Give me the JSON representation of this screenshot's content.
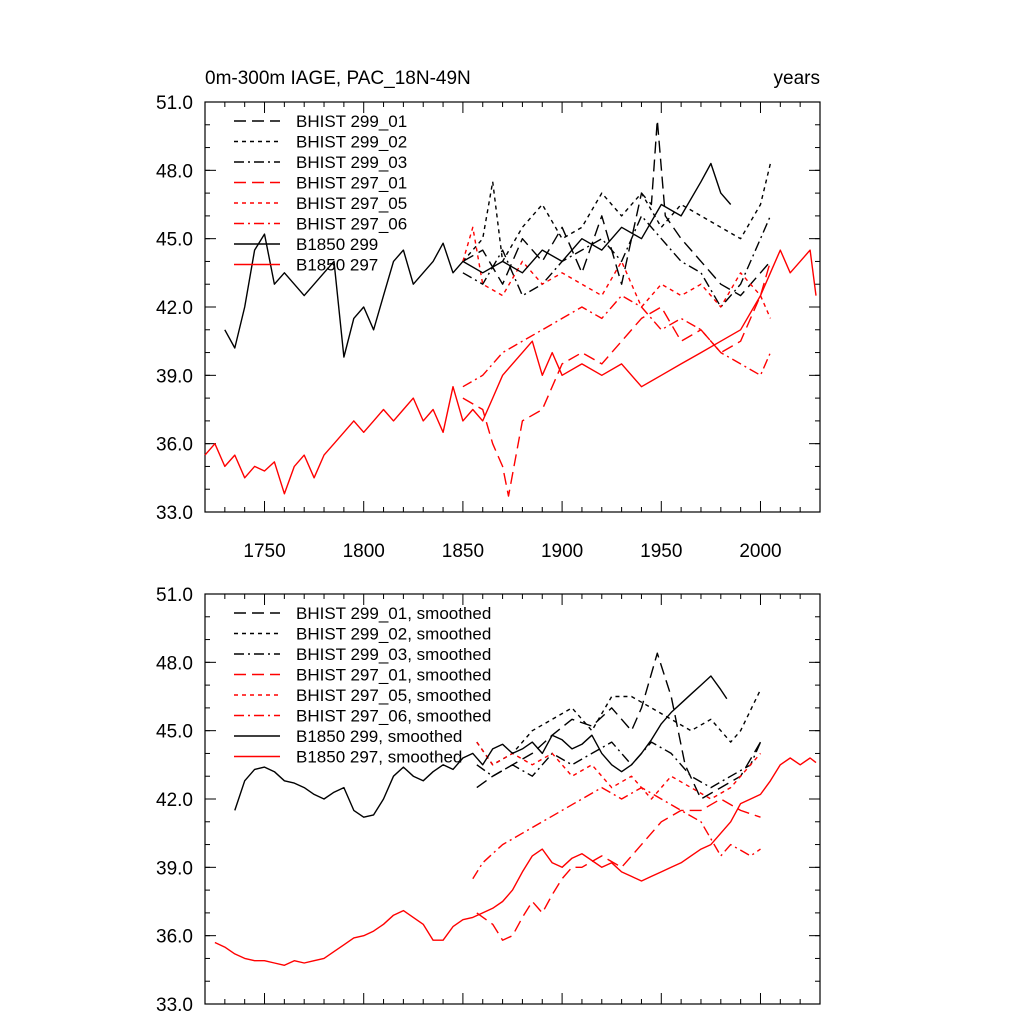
{
  "chart_data": [
    {
      "type": "line",
      "title": "0m-300m IAGE, PAC_18N-49N",
      "title_right": "years",
      "xlim": [
        1720,
        2030
      ],
      "ylim": [
        33,
        51
      ],
      "xticks": [
        1750,
        1800,
        1850,
        1900,
        1950,
        2000
      ],
      "yticks": [
        33.0,
        36.0,
        39.0,
        42.0,
        45.0,
        48.0,
        51.0
      ],
      "ytick_labels": [
        "33.0",
        "36.0",
        "39.0",
        "42.0",
        "45.0",
        "48.0",
        "51.0"
      ],
      "legend": [
        "BHIST 299_01",
        "BHIST 299_02",
        "BHIST 299_03",
        "BHIST 297_01",
        "BHIST 297_05",
        "BHIST 297_06",
        "B1850 299",
        "B1850 297"
      ],
      "series": [
        {
          "name": "BHIST 299_01",
          "color": "#000000",
          "dash": "long",
          "x": [
            1850,
            1860,
            1870,
            1880,
            1890,
            1900,
            1910,
            1920,
            1930,
            1940,
            1945,
            1948,
            1952,
            1960,
            1970,
            1980,
            1990,
            2000,
            2005
          ],
          "y": [
            44.0,
            44.5,
            43.0,
            45.0,
            44.0,
            45.5,
            43.5,
            46.0,
            43.0,
            47.0,
            46.5,
            50.2,
            46.0,
            45.0,
            44.0,
            43.0,
            42.5,
            43.5,
            44.0
          ]
        },
        {
          "name": "BHIST 299_02",
          "color": "#000000",
          "dash": "short",
          "x": [
            1850,
            1860,
            1865,
            1870,
            1880,
            1890,
            1900,
            1910,
            1920,
            1930,
            1940,
            1950,
            1960,
            1970,
            1980,
            1990,
            2000,
            2005
          ],
          "y": [
            44.0,
            45.0,
            47.5,
            44.0,
            45.5,
            46.5,
            45.0,
            45.5,
            47.0,
            46.0,
            47.0,
            45.5,
            46.5,
            46.0,
            45.5,
            45.0,
            46.5,
            48.3
          ]
        },
        {
          "name": "BHIST 299_03",
          "color": "#000000",
          "dash": "dashdot",
          "x": [
            1850,
            1860,
            1870,
            1880,
            1890,
            1900,
            1910,
            1920,
            1930,
            1940,
            1950,
            1960,
            1970,
            1980,
            1990,
            2000,
            2005
          ],
          "y": [
            43.5,
            43.0,
            44.5,
            42.5,
            43.0,
            44.0,
            44.5,
            45.0,
            44.0,
            46.0,
            45.0,
            44.0,
            43.5,
            42.0,
            43.0,
            45.0,
            46.0
          ]
        },
        {
          "name": "BHIST 297_01",
          "color": "#ff0000",
          "dash": "long",
          "x": [
            1850,
            1860,
            1865,
            1870,
            1873,
            1880,
            1890,
            1900,
            1910,
            1920,
            1930,
            1940,
            1950,
            1960,
            1970,
            1980,
            1990,
            2000,
            2005
          ],
          "y": [
            38.0,
            37.5,
            36.0,
            35.0,
            33.7,
            37.0,
            37.5,
            39.5,
            40.0,
            39.5,
            40.5,
            41.5,
            42.0,
            40.5,
            41.0,
            40.0,
            40.5,
            42.5,
            44.0
          ]
        },
        {
          "name": "BHIST 297_05",
          "color": "#ff0000",
          "dash": "short",
          "x": [
            1850,
            1855,
            1860,
            1870,
            1880,
            1890,
            1900,
            1910,
            1920,
            1930,
            1940,
            1950,
            1960,
            1970,
            1980,
            1990,
            2000,
            2005
          ],
          "y": [
            44.0,
            45.5,
            43.0,
            42.5,
            44.0,
            43.0,
            43.5,
            43.0,
            42.5,
            44.0,
            42.0,
            43.0,
            42.5,
            43.0,
            42.0,
            43.5,
            42.5,
            41.5
          ]
        },
        {
          "name": "BHIST 297_06",
          "color": "#ff0000",
          "dash": "dashdot",
          "x": [
            1850,
            1860,
            1870,
            1880,
            1890,
            1900,
            1910,
            1920,
            1930,
            1940,
            1950,
            1960,
            1970,
            1980,
            1990,
            2000,
            2005
          ],
          "y": [
            38.5,
            39.0,
            40.0,
            40.5,
            41.0,
            41.5,
            42.0,
            41.5,
            42.5,
            42.0,
            41.0,
            41.5,
            41.0,
            40.0,
            39.5,
            39.0,
            40.0
          ]
        },
        {
          "name": "B1850 299",
          "color": "#000000",
          "dash": "solid",
          "x": [
            1730,
            1735,
            1740,
            1745,
            1750,
            1755,
            1760,
            1770,
            1775,
            1780,
            1785,
            1790,
            1795,
            1800,
            1805,
            1810,
            1815,
            1820,
            1825,
            1830,
            1835,
            1840,
            1845,
            1850,
            1860,
            1870,
            1880,
            1890,
            1900,
            1910,
            1920,
            1930,
            1940,
            1950,
            1960,
            1970,
            1975,
            1980,
            1985
          ],
          "y": [
            41.0,
            40.2,
            42.0,
            44.5,
            45.2,
            43.0,
            43.5,
            42.5,
            43.0,
            43.5,
            44.0,
            39.8,
            41.5,
            42.0,
            41.0,
            42.5,
            44.0,
            44.5,
            43.0,
            43.5,
            44.0,
            44.8,
            43.5,
            44.0,
            43.5,
            44.0,
            43.5,
            44.5,
            44.0,
            45.0,
            44.5,
            45.5,
            45.0,
            46.5,
            46.0,
            47.5,
            48.3,
            47.0,
            46.5
          ]
        },
        {
          "name": "B1850 297",
          "color": "#ff0000",
          "dash": "solid",
          "x": [
            1720,
            1725,
            1730,
            1735,
            1740,
            1745,
            1750,
            1755,
            1760,
            1765,
            1770,
            1775,
            1780,
            1785,
            1790,
            1795,
            1800,
            1805,
            1810,
            1815,
            1820,
            1825,
            1830,
            1835,
            1840,
            1845,
            1850,
            1855,
            1860,
            1865,
            1870,
            1880,
            1885,
            1890,
            1895,
            1900,
            1910,
            1920,
            1930,
            1940,
            1950,
            1960,
            1970,
            1980,
            1990,
            2000,
            2005,
            2010,
            2015,
            2020,
            2025,
            2028
          ],
          "y": [
            35.5,
            36.0,
            35.0,
            35.5,
            34.5,
            35.0,
            34.8,
            35.2,
            33.8,
            35.0,
            35.5,
            34.5,
            35.5,
            36.0,
            36.5,
            37.0,
            36.5,
            37.0,
            37.5,
            37.0,
            37.5,
            38.0,
            37.0,
            37.5,
            36.5,
            38.5,
            37.0,
            37.5,
            37.0,
            38.0,
            39.0,
            40.0,
            40.5,
            39.0,
            40.0,
            39.0,
            39.5,
            39.0,
            39.5,
            38.5,
            39.0,
            39.5,
            40.0,
            40.5,
            41.0,
            42.5,
            43.5,
            44.5,
            43.5,
            44.0,
            44.5,
            42.5
          ]
        }
      ]
    },
    {
      "type": "line",
      "title": "",
      "xlim": [
        1720,
        2030
      ],
      "ylim": [
        33,
        51
      ],
      "xticks": [
        1750,
        1800,
        1850,
        1900,
        1950,
        2000
      ],
      "yticks": [
        33.0,
        36.0,
        39.0,
        42.0,
        45.0,
        48.0,
        51.0
      ],
      "ytick_labels": [
        "33.0",
        "36.0",
        "39.0",
        "42.0",
        "45.0",
        "48.0",
        "51.0"
      ],
      "legend": [
        "BHIST 299_01, smoothed",
        "BHIST 299_02, smoothed",
        "BHIST 299_03, smoothed",
        "BHIST 297_01, smoothed",
        "BHIST 297_05, smoothed",
        "BHIST 297_06, smoothed",
        "B1850 299, smoothed",
        "B1850 297, smoothed"
      ],
      "series": [
        {
          "name": "BHIST 299_01, smoothed",
          "color": "#000000",
          "dash": "long",
          "x": [
            1857,
            1865,
            1875,
            1885,
            1895,
            1905,
            1915,
            1925,
            1935,
            1940,
            1945,
            1948,
            1955,
            1962,
            1970,
            1980,
            1990,
            2000
          ],
          "y": [
            42.5,
            43.0,
            43.5,
            44.0,
            44.8,
            45.5,
            45.2,
            46.0,
            45.0,
            46.0,
            47.5,
            48.4,
            46.5,
            43.5,
            42.0,
            42.5,
            43.0,
            44.5
          ]
        },
        {
          "name": "BHIST 299_02, smoothed",
          "color": "#000000",
          "dash": "short",
          "x": [
            1857,
            1865,
            1875,
            1885,
            1895,
            1905,
            1915,
            1925,
            1935,
            1945,
            1955,
            1965,
            1975,
            1985,
            1990,
            2000
          ],
          "y": [
            44.5,
            43.5,
            44.0,
            45.0,
            45.5,
            46.0,
            45.0,
            46.5,
            46.5,
            46.0,
            45.5,
            45.0,
            45.5,
            44.5,
            45.0,
            46.8
          ]
        },
        {
          "name": "BHIST 299_03, smoothed",
          "color": "#000000",
          "dash": "dashdot",
          "x": [
            1857,
            1865,
            1875,
            1885,
            1895,
            1905,
            1915,
            1925,
            1935,
            1945,
            1955,
            1965,
            1975,
            1985,
            1995,
            2000
          ],
          "y": [
            43.5,
            43.0,
            43.5,
            43.0,
            44.0,
            43.5,
            44.0,
            44.5,
            43.5,
            44.5,
            44.0,
            43.0,
            42.5,
            43.0,
            43.5,
            44.5
          ]
        },
        {
          "name": "BHIST 297_01, smoothed",
          "color": "#ff0000",
          "dash": "long",
          "x": [
            1857,
            1865,
            1870,
            1875,
            1880,
            1885,
            1890,
            1895,
            1900,
            1905,
            1910,
            1920,
            1930,
            1940,
            1950,
            1960,
            1970,
            1980,
            1990,
            2000
          ],
          "y": [
            37.0,
            36.5,
            35.8,
            36.0,
            36.8,
            37.5,
            37.0,
            37.8,
            38.5,
            39.0,
            39.0,
            39.5,
            39.0,
            40.0,
            41.0,
            41.5,
            41.5,
            42.0,
            41.5,
            41.2
          ]
        },
        {
          "name": "BHIST 297_05, smoothed",
          "color": "#ff0000",
          "dash": "short",
          "x": [
            1857,
            1865,
            1875,
            1885,
            1895,
            1905,
            1915,
            1925,
            1935,
            1945,
            1955,
            1965,
            1975,
            1985,
            1995,
            2000
          ],
          "y": [
            44.5,
            43.5,
            44.0,
            43.5,
            44.0,
            43.0,
            43.5,
            42.5,
            43.0,
            42.0,
            43.0,
            42.5,
            42.0,
            42.5,
            43.5,
            44.0
          ]
        },
        {
          "name": "BHIST 297_06, smoothed",
          "color": "#ff0000",
          "dash": "dashdot",
          "x": [
            1855,
            1860,
            1870,
            1880,
            1890,
            1900,
            1910,
            1920,
            1930,
            1940,
            1950,
            1960,
            1970,
            1980,
            1985,
            1995,
            2000
          ],
          "y": [
            38.5,
            39.2,
            40.0,
            40.5,
            41.0,
            41.5,
            42.0,
            42.5,
            42.0,
            42.5,
            42.0,
            41.5,
            41.0,
            39.5,
            40.0,
            39.5,
            39.8
          ]
        },
        {
          "name": "B1850 299, smoothed",
          "color": "#000000",
          "dash": "solid",
          "x": [
            1735,
            1740,
            1745,
            1750,
            1755,
            1760,
            1765,
            1770,
            1775,
            1780,
            1785,
            1790,
            1795,
            1800,
            1805,
            1810,
            1815,
            1820,
            1825,
            1830,
            1835,
            1840,
            1845,
            1850,
            1855,
            1860,
            1865,
            1870,
            1875,
            1880,
            1885,
            1890,
            1895,
            1900,
            1905,
            1910,
            1915,
            1920,
            1925,
            1930,
            1935,
            1940,
            1945,
            1950,
            1955,
            1960,
            1965,
            1970,
            1975,
            1980,
            1983
          ],
          "y": [
            41.5,
            42.8,
            43.3,
            43.4,
            43.2,
            42.8,
            42.7,
            42.5,
            42.2,
            42.0,
            42.3,
            42.5,
            41.5,
            41.2,
            41.3,
            42.0,
            43.0,
            43.4,
            43.0,
            42.8,
            43.2,
            43.5,
            43.3,
            43.8,
            44.0,
            43.5,
            44.2,
            44.4,
            44.0,
            44.2,
            44.5,
            44.0,
            44.8,
            44.6,
            44.2,
            44.4,
            44.8,
            44.0,
            43.5,
            43.2,
            43.5,
            44.0,
            44.6,
            45.3,
            45.8,
            46.2,
            46.6,
            47.0,
            47.4,
            46.8,
            46.4
          ]
        },
        {
          "name": "B1850 297, smoothed",
          "color": "#ff0000",
          "dash": "solid",
          "x": [
            1725,
            1730,
            1735,
            1740,
            1745,
            1750,
            1755,
            1760,
            1765,
            1770,
            1775,
            1780,
            1785,
            1790,
            1795,
            1800,
            1805,
            1810,
            1815,
            1820,
            1825,
            1830,
            1835,
            1840,
            1845,
            1850,
            1855,
            1860,
            1865,
            1870,
            1875,
            1880,
            1885,
            1890,
            1895,
            1900,
            1905,
            1910,
            1915,
            1920,
            1925,
            1930,
            1935,
            1940,
            1945,
            1950,
            1955,
            1960,
            1965,
            1970,
            1975,
            1980,
            1985,
            1990,
            1995,
            2000,
            2005,
            2010,
            2015,
            2020,
            2025,
            2028
          ],
          "y": [
            35.7,
            35.5,
            35.2,
            35.0,
            34.9,
            34.9,
            34.8,
            34.7,
            34.9,
            34.8,
            34.9,
            35.0,
            35.3,
            35.6,
            35.9,
            36.0,
            36.2,
            36.5,
            36.9,
            37.1,
            36.8,
            36.5,
            35.8,
            35.8,
            36.4,
            36.7,
            36.8,
            37.0,
            37.2,
            37.5,
            38.0,
            38.8,
            39.5,
            39.8,
            39.2,
            39.0,
            39.4,
            39.6,
            39.3,
            39.0,
            39.2,
            38.8,
            38.6,
            38.4,
            38.6,
            38.8,
            39.0,
            39.2,
            39.5,
            39.8,
            40.0,
            40.5,
            41.0,
            41.8,
            42.0,
            42.2,
            42.8,
            43.5,
            43.8,
            43.5,
            43.8,
            43.6
          ]
        }
      ]
    }
  ]
}
